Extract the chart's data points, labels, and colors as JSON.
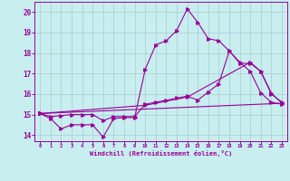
{
  "bg_color": "#c8eef0",
  "line_color": "#990099",
  "grid_color": "#aacccc",
  "xlabel": "Windchill (Refroidissement éolien,°C)",
  "xlabel_color": "#990099",
  "xlim": [
    -0.5,
    23.5
  ],
  "ylim": [
    13.7,
    20.5
  ],
  "yticks": [
    14,
    15,
    16,
    17,
    18,
    19,
    20
  ],
  "xticks": [
    0,
    1,
    2,
    3,
    4,
    5,
    6,
    7,
    8,
    9,
    10,
    11,
    12,
    13,
    14,
    15,
    16,
    17,
    18,
    19,
    20,
    21,
    22,
    23
  ],
  "line1_x": [
    0,
    1,
    2,
    3,
    4,
    5,
    6,
    7,
    8,
    9,
    10,
    11,
    12,
    13,
    14,
    15,
    16,
    17,
    18,
    19,
    20,
    21,
    22,
    23
  ],
  "line1_y": [
    15.05,
    14.8,
    14.3,
    14.5,
    14.5,
    14.5,
    13.9,
    14.8,
    14.85,
    14.85,
    17.2,
    18.4,
    18.6,
    19.1,
    20.15,
    19.5,
    18.7,
    18.6,
    18.1,
    17.55,
    17.1,
    16.05,
    15.6,
    15.5
  ],
  "line2_x": [
    0,
    1,
    2,
    3,
    4,
    5,
    6,
    7,
    8,
    9,
    10,
    11,
    12,
    13,
    14,
    15,
    16,
    17,
    18,
    19,
    20,
    21,
    22,
    23
  ],
  "line2_y": [
    15.05,
    14.9,
    14.95,
    15.0,
    15.0,
    15.0,
    14.7,
    14.9,
    14.9,
    14.9,
    15.5,
    15.6,
    15.7,
    15.8,
    15.9,
    15.7,
    16.1,
    16.5,
    18.1,
    17.5,
    17.5,
    17.1,
    16.0,
    15.6
  ],
  "line3_x": [
    0,
    23
  ],
  "line3_y": [
    15.05,
    15.55
  ],
  "line4_x": [
    0,
    10,
    14,
    20,
    21,
    22,
    23
  ],
  "line4_y": [
    15.05,
    15.45,
    15.85,
    17.55,
    17.1,
    16.05,
    15.55
  ]
}
